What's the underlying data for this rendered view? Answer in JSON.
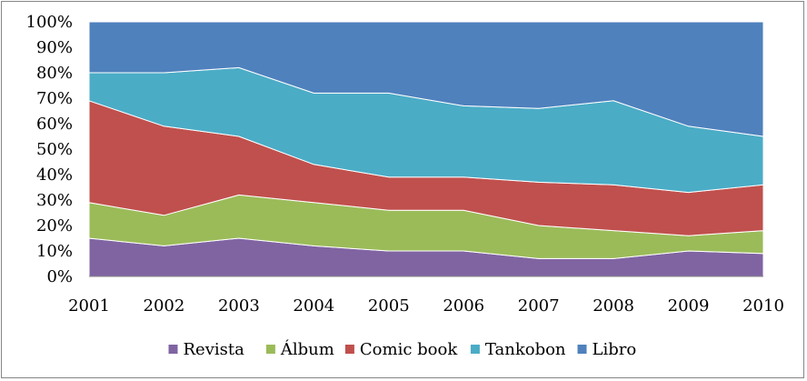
{
  "chart_data": {
    "type": "area",
    "stacked": "percent",
    "x": [
      "2001",
      "2002",
      "2003",
      "2004",
      "2005",
      "2006",
      "2007",
      "2008",
      "2009",
      "2010"
    ],
    "ylim": [
      0,
      100
    ],
    "yticks": [
      "0%",
      "10%",
      "20%",
      "30%",
      "40%",
      "50%",
      "60%",
      "70%",
      "80%",
      "90%",
      "100%"
    ],
    "grid": true,
    "legend_position": "bottom",
    "series": [
      {
        "name": "Revista",
        "color": "#8064A2",
        "values": [
          15,
          12,
          15,
          12,
          10,
          10,
          7,
          7,
          10,
          9
        ]
      },
      {
        "name": "Álbum",
        "color": "#9BBB59",
        "values": [
          14,
          12,
          17,
          17,
          16,
          16,
          13,
          11,
          6,
          9
        ]
      },
      {
        "name": "Comic book",
        "color": "#C0504D",
        "values": [
          40,
          35,
          23,
          15,
          13,
          13,
          17,
          18,
          17,
          18
        ]
      },
      {
        "name": "Tankobon",
        "color": "#4BACC6",
        "values": [
          11,
          21,
          27,
          28,
          33,
          28,
          29,
          33,
          26,
          19
        ]
      },
      {
        "name": "Libro",
        "color": "#4F81BD",
        "values": [
          20,
          20,
          18,
          28,
          28,
          33,
          34,
          31,
          41,
          45
        ]
      }
    ]
  }
}
